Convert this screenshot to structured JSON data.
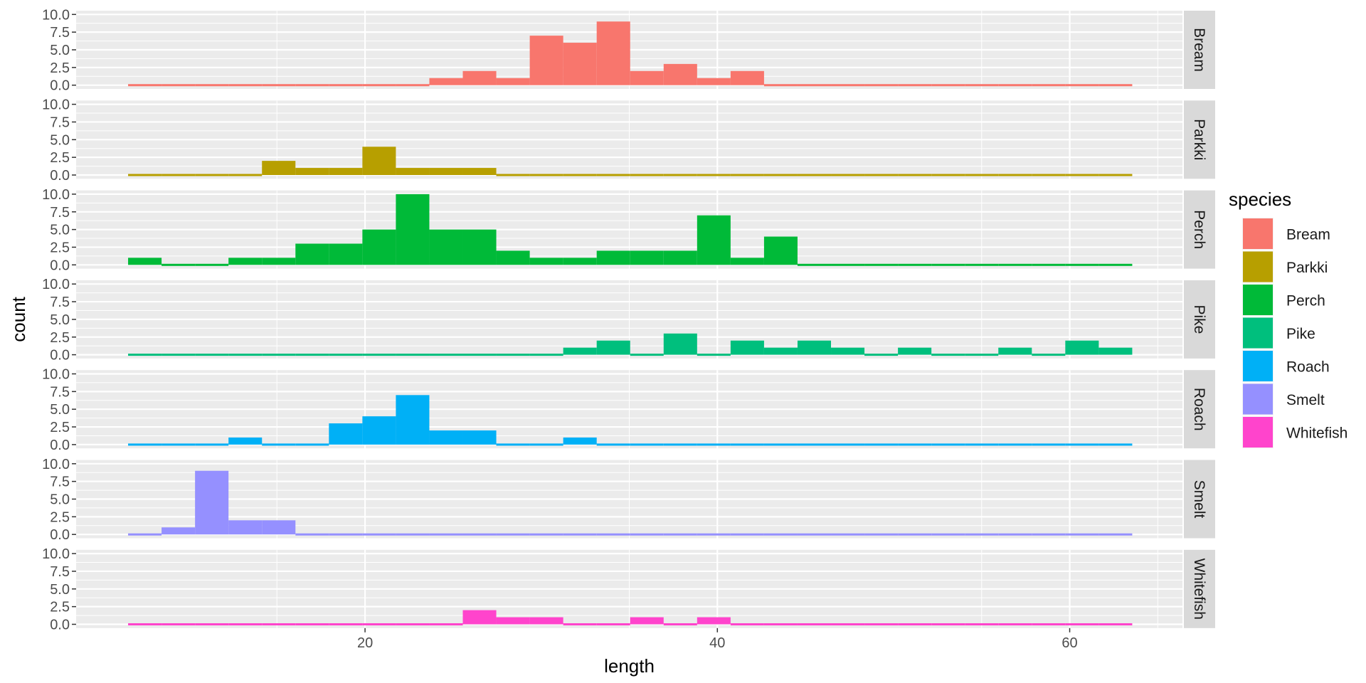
{
  "chart_data": {
    "type": "bar",
    "subtype": "faceted-histogram",
    "xlabel": "length",
    "ylabel": "count",
    "xlim": [
      3.6,
      66.4
    ],
    "ylim": [
      0,
      10
    ],
    "x_ticks": [
      20,
      40,
      60
    ],
    "y_ticks": [
      0.0,
      2.5,
      5.0,
      7.5,
      10.0
    ],
    "y_tick_labels": [
      "0.0",
      "2.5",
      "5.0",
      "7.5",
      "10.0"
    ],
    "grid": true,
    "bins": {
      "count": 30,
      "start": 6.55,
      "width": 1.9
    },
    "legend": {
      "title": "species",
      "position": "right",
      "entries": [
        "Bream",
        "Parkki",
        "Perch",
        "Pike",
        "Roach",
        "Smelt",
        "Whitefish"
      ]
    },
    "series": [
      {
        "name": "Bream",
        "color": "#F8766D",
        "values": [
          0,
          0,
          0,
          0,
          0,
          0,
          0,
          0,
          0,
          1,
          2,
          1,
          7,
          6,
          9,
          2,
          3,
          1,
          2,
          0,
          0,
          0,
          0,
          0,
          0,
          0,
          0,
          0,
          0,
          0
        ]
      },
      {
        "name": "Parkki",
        "color": "#B79F00",
        "values": [
          0,
          0,
          0,
          0,
          2,
          1,
          1,
          4,
          1,
          1,
          1,
          0,
          0,
          0,
          0,
          0,
          0,
          0,
          0,
          0,
          0,
          0,
          0,
          0,
          0,
          0,
          0,
          0,
          0,
          0
        ]
      },
      {
        "name": "Perch",
        "color": "#00BA38",
        "values": [
          1,
          0,
          0,
          1,
          1,
          3,
          3,
          5,
          10,
          5,
          5,
          2,
          1,
          1,
          2,
          2,
          2,
          7,
          1,
          4,
          0,
          0,
          0,
          0,
          0,
          0,
          0,
          0,
          0,
          0
        ]
      },
      {
        "name": "Pike",
        "color": "#00BF7D",
        "values": [
          0,
          0,
          0,
          0,
          0,
          0,
          0,
          0,
          0,
          0,
          0,
          0,
          0,
          1,
          2,
          0,
          3,
          0,
          2,
          1,
          2,
          1,
          0,
          1,
          0,
          0,
          1,
          0,
          2,
          1
        ]
      },
      {
        "name": "Roach",
        "color": "#00B0F6",
        "values": [
          0,
          0,
          0,
          1,
          0,
          0,
          3,
          4,
          7,
          2,
          2,
          0,
          0,
          1,
          0,
          0,
          0,
          0,
          0,
          0,
          0,
          0,
          0,
          0,
          0,
          0,
          0,
          0,
          0,
          0
        ]
      },
      {
        "name": "Smelt",
        "color": "#9590FF",
        "values": [
          0,
          1,
          9,
          2,
          2,
          0,
          0,
          0,
          0,
          0,
          0,
          0,
          0,
          0,
          0,
          0,
          0,
          0,
          0,
          0,
          0,
          0,
          0,
          0,
          0,
          0,
          0,
          0,
          0,
          0
        ]
      },
      {
        "name": "Whitefish",
        "color": "#FF44CC",
        "values": [
          0,
          0,
          0,
          0,
          0,
          0,
          0,
          0,
          0,
          0,
          2,
          1,
          1,
          0,
          0,
          1,
          0,
          1,
          0,
          0,
          0,
          0,
          0,
          0,
          0,
          0,
          0,
          0,
          0,
          0
        ]
      }
    ]
  }
}
